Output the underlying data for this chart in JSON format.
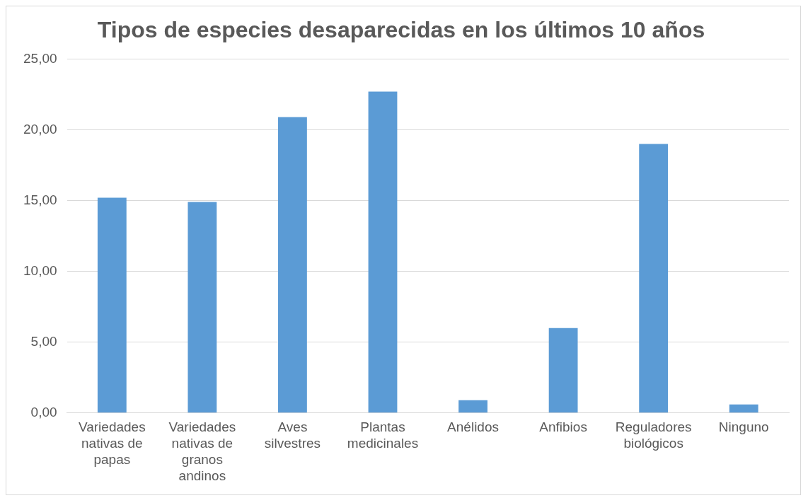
{
  "chart_data": {
    "type": "bar",
    "title": "Tipos de especies desaparecidas en los últimos 10 años",
    "categories": [
      "Variedades nativas de papas",
      "Variedades nativas de granos andinos",
      "Aves silvestres",
      "Plantas medicinales",
      "Anélidos",
      "Anfibios",
      "Reguladores biológicos",
      "Ninguno"
    ],
    "values": [
      15.2,
      14.9,
      20.9,
      22.7,
      0.9,
      6.0,
      19.0,
      0.6
    ],
    "color": "#5b9bd5",
    "ylim": [
      0,
      25
    ],
    "yticks": [
      {
        "value": 0,
        "label": "0,00"
      },
      {
        "value": 5,
        "label": "5,00"
      },
      {
        "value": 10,
        "label": "10,00"
      },
      {
        "value": 15,
        "label": "15,00"
      },
      {
        "value": 20,
        "label": "20,00"
      },
      {
        "value": 25,
        "label": "25,00"
      }
    ],
    "grid": "y",
    "legend": false
  }
}
